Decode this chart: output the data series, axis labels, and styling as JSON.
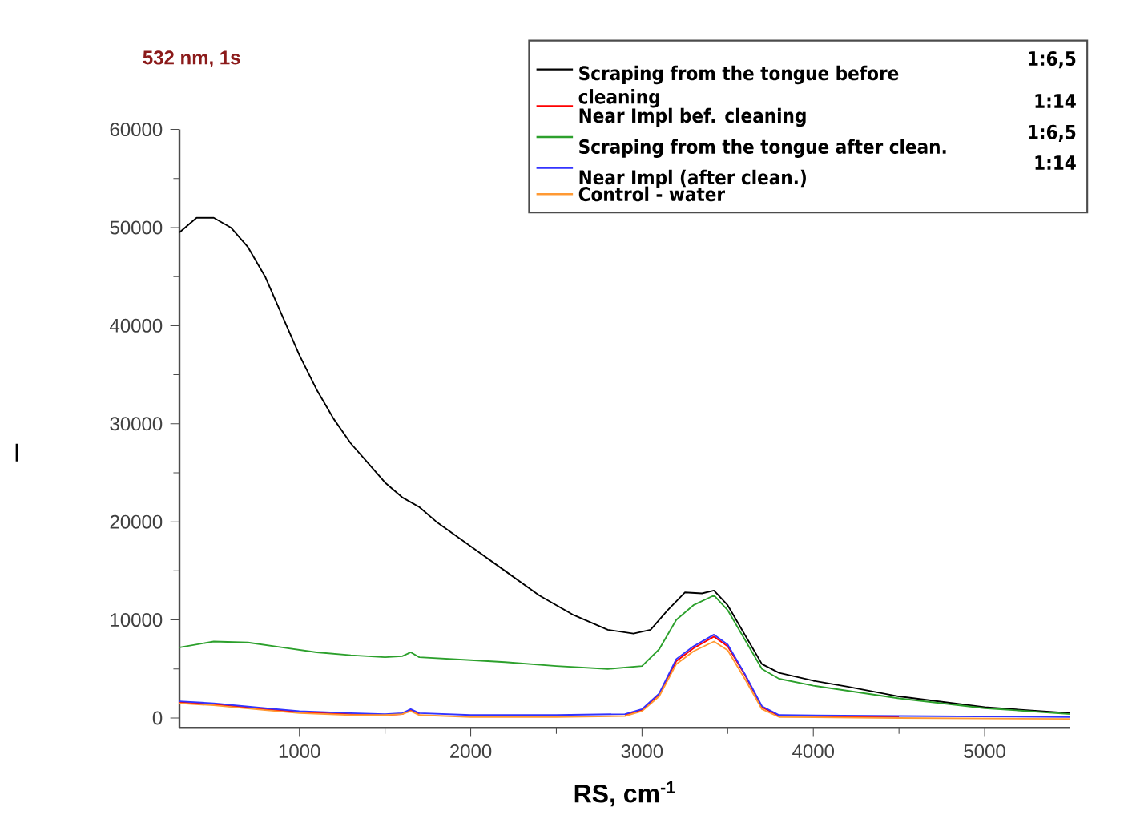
{
  "chart_data": {
    "type": "line",
    "title": "532 nm, 1s",
    "xlabel": "RS, cm$^{-1}$",
    "ylabel": "I",
    "xlim": [
      300,
      5500
    ],
    "xticks": [
      1000,
      2000,
      3000,
      4000,
      5000
    ],
    "ylim": [
      -1000,
      60000
    ],
    "yticks": [
      0,
      10000,
      20000,
      30000,
      40000,
      50000,
      60000
    ],
    "grid": false,
    "legend": "top right",
    "marker": "none",
    "line_style": "solid",
    "annotations": [
      "1:6,5",
      "1:14",
      "1:6,5",
      "1:14"
    ],
    "series": [
      {
        "name": "Scraping from the tongue before cleaning",
        "color": "#000000",
        "x": [
          300,
          400,
          500,
          600,
          700,
          800,
          900,
          1000,
          1100,
          1200,
          1300,
          1400,
          1500,
          1600,
          1650,
          1700,
          1800,
          2000,
          2200,
          2400,
          2600,
          2800,
          2950,
          3050,
          3150,
          3250,
          3350,
          3420,
          3500,
          3600,
          3700,
          3800,
          4000,
          4200,
          4500,
          5000,
          5500
        ],
        "values": [
          49500,
          51000,
          51000,
          50000,
          48000,
          45000,
          41000,
          37000,
          33500,
          30500,
          28000,
          26000,
          24000,
          22500,
          22000,
          21500,
          20000,
          17500,
          15000,
          12500,
          10500,
          9000,
          8600,
          9000,
          11000,
          12800,
          12700,
          13000,
          11500,
          8500,
          5500,
          4600,
          3800,
          3200,
          2200,
          1100,
          500
        ]
      },
      {
        "name": "Near Impl bef. cleaning",
        "color": "#ff0000",
        "x": [
          300,
          500,
          800,
          1000,
          1300,
          1500,
          1600,
          1650,
          1700,
          2000,
          2500,
          2900,
          3000,
          3100,
          3200,
          3300,
          3420,
          3500,
          3600,
          3700,
          3800,
          4500
        ],
        "values": [
          1600,
          1400,
          900,
          600,
          400,
          300,
          400,
          800,
          400,
          null,
          null,
          300,
          800,
          2400,
          5800,
          7100,
          8300,
          7300,
          4400,
          1100,
          200,
          100
        ]
      },
      {
        "name": "Scraping from the tongue after clean.",
        "color": "#2ca02c",
        "x": [
          300,
          400,
          500,
          700,
          900,
          1100,
          1300,
          1500,
          1600,
          1650,
          1700,
          2000,
          2200,
          2500,
          2800,
          3000,
          3100,
          3200,
          3300,
          3420,
          3500,
          3600,
          3700,
          3800,
          4000,
          4500,
          5000,
          5500
        ],
        "values": [
          7200,
          7500,
          7800,
          7700,
          7200,
          6700,
          6400,
          6200,
          6300,
          6700,
          6200,
          5900,
          5700,
          5300,
          5000,
          5300,
          7000,
          10000,
          11500,
          12500,
          11000,
          8000,
          5000,
          4000,
          3300,
          2000,
          1000,
          400
        ]
      },
      {
        "name": "Near Impl (after clean.)",
        "color": "#3333ff",
        "x": [
          300,
          500,
          800,
          1000,
          1300,
          1500,
          1600,
          1650,
          1700,
          2000,
          2500,
          2900,
          3000,
          3100,
          3200,
          3300,
          3420,
          3500,
          3600,
          3700,
          3800,
          4500,
          5500
        ],
        "values": [
          1700,
          1500,
          1000,
          700,
          500,
          400,
          500,
          900,
          500,
          300,
          300,
          400,
          900,
          2500,
          6000,
          7300,
          8500,
          7500,
          4500,
          1200,
          300,
          200,
          100
        ]
      },
      {
        "name": "Control - water",
        "color": "#ff9933",
        "x": [
          300,
          500,
          800,
          1000,
          1300,
          1500,
          1600,
          1650,
          1700,
          2000,
          2500,
          2900,
          3000,
          3100,
          3200,
          3300,
          3420,
          3500,
          3600,
          3700,
          3800,
          4500,
          5500
        ],
        "values": [
          1500,
          1300,
          800,
          500,
          300,
          300,
          400,
          700,
          300,
          100,
          100,
          200,
          700,
          2200,
          5500,
          6800,
          7800,
          6900,
          4000,
          900,
          100,
          0,
          -100
        ]
      }
    ]
  }
}
